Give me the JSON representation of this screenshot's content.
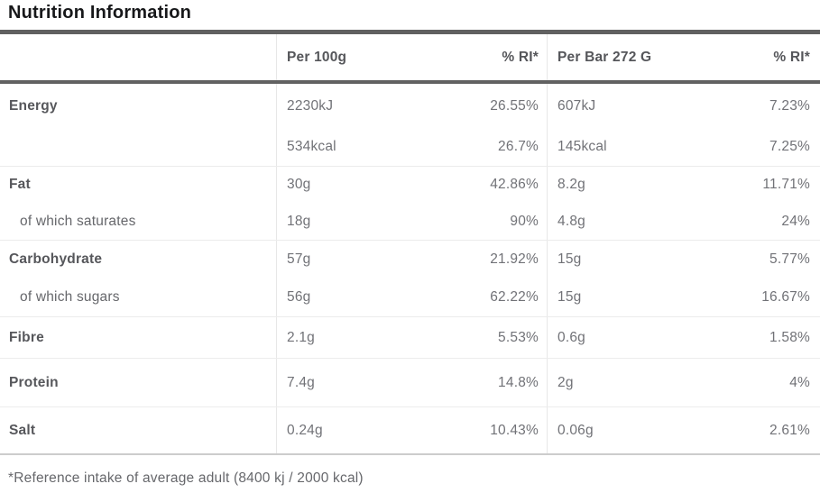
{
  "title": "Nutrition Information",
  "colors": {
    "heavy_divider": "#616161",
    "light_divider": "#ececec",
    "bottom_divider": "#cccccc",
    "title_text": "#17181a",
    "label_text": "#56575b",
    "value_text": "#717277"
  },
  "table": {
    "header": {
      "label": "",
      "per100g": "Per 100g",
      "ri100g": "% RI*",
      "perbar": "Per Bar 272 G",
      "ribar": "% RI*"
    },
    "rows": [
      {
        "label": "Energy",
        "per100g": "2230kJ",
        "ri100g": "26.55%",
        "perbar": "607kJ",
        "ribar": "7.23%"
      },
      {
        "label": "",
        "per100g": "534kcal",
        "ri100g": "26.7%",
        "perbar": "145kcal",
        "ribar": "7.25%"
      },
      {
        "label": "Fat",
        "per100g": "30g",
        "ri100g": "42.86%",
        "perbar": "8.2g",
        "ribar": "11.71%"
      },
      {
        "label": "of which saturates",
        "per100g": "18g",
        "ri100g": "90%",
        "perbar": "4.8g",
        "ribar": "24%"
      },
      {
        "label": "Carbohydrate",
        "per100g": "57g",
        "ri100g": "21.92%",
        "perbar": "15g",
        "ribar": "5.77%"
      },
      {
        "label": "of which sugars",
        "per100g": "56g",
        "ri100g": "62.22%",
        "perbar": "15g",
        "ribar": "16.67%"
      },
      {
        "label": "Fibre",
        "per100g": "2.1g",
        "ri100g": "5.53%",
        "perbar": "0.6g",
        "ribar": "1.58%"
      },
      {
        "label": "Protein",
        "per100g": "7.4g",
        "ri100g": "14.8%",
        "perbar": "2g",
        "ribar": "4%"
      },
      {
        "label": "Salt",
        "per100g": "0.24g",
        "ri100g": "10.43%",
        "perbar": "0.06g",
        "ribar": "2.61%"
      }
    ],
    "footnote": "*Reference intake of average adult (8400 kj / 2000 kcal)"
  }
}
